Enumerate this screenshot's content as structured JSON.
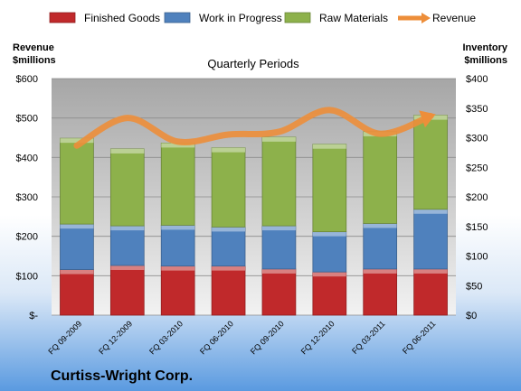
{
  "chart_data": {
    "type": "bar",
    "subtitle": "Quarterly Periods",
    "left_axis_title": [
      "Revenue",
      "$millions"
    ],
    "right_axis_title": [
      "Inventory",
      "$millions"
    ],
    "company": "Curtiss-Wright Corp.",
    "categories": [
      "FQ 09-2009",
      "FQ 12-2009",
      "FQ 03-2010",
      "FQ 06-2010",
      "FQ 09-2010",
      "FQ 12-2010",
      "FQ 03-2011",
      "FQ 06-2011"
    ],
    "left_ticks": [
      "$-",
      "$100",
      "$200",
      "$300",
      "$400",
      "$500",
      "$600"
    ],
    "right_ticks": [
      "$0",
      "$50",
      "$100",
      "$150",
      "$200",
      "$250",
      "$300",
      "$350",
      "$400"
    ],
    "ylim_left": [
      0,
      600
    ],
    "ylim_right": [
      0,
      400
    ],
    "series": [
      {
        "name": "Finished Goods",
        "axis": "right",
        "color": "#c0292b",
        "values": [
          77,
          84,
          83,
          83,
          78,
          73,
          78,
          78
        ]
      },
      {
        "name": "Work in Progress",
        "axis": "right",
        "color": "#4f81bd",
        "values": [
          77,
          67,
          69,
          66,
          73,
          68,
          77,
          101
        ]
      },
      {
        "name": "Raw Materials",
        "axis": "right",
        "color": "#8db14b",
        "values": [
          145,
          130,
          139,
          134,
          150,
          148,
          155,
          159
        ]
      },
      {
        "name": "Revenue",
        "axis": "left",
        "color": "#ed8e3a",
        "type": "line",
        "values": [
          430,
          500,
          440,
          458,
          465,
          520,
          460,
          505
        ]
      }
    ],
    "legend_position": "top",
    "grid": true
  }
}
